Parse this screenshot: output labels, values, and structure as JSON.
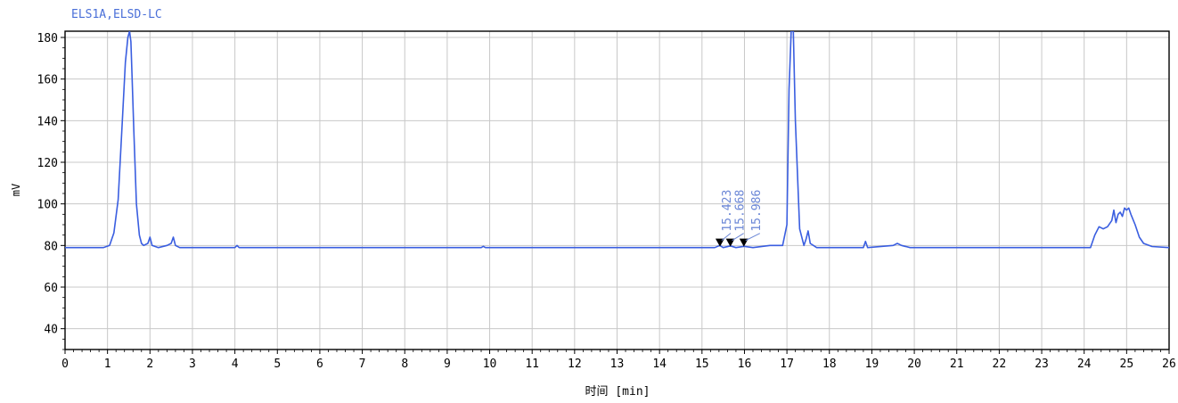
{
  "chart_data": {
    "type": "line",
    "title": "ELS1A,ELSD-LC",
    "xlabel": "时间 [min]",
    "ylabel": "mV",
    "xlim": [
      0,
      26
    ],
    "ylim": [
      30,
      183
    ],
    "x_ticks": [
      0,
      1,
      2,
      3,
      4,
      5,
      6,
      7,
      8,
      9,
      10,
      11,
      12,
      13,
      14,
      15,
      16,
      17,
      18,
      19,
      20,
      21,
      22,
      23,
      24,
      25,
      26
    ],
    "y_ticks": [
      40,
      60,
      80,
      100,
      120,
      140,
      160,
      180
    ],
    "grid": true,
    "colors": {
      "line": "#3a5ee0",
      "title": "#4a6fd8",
      "annotation": "#6a86d6",
      "grid": "#c8c8c8",
      "axis": "#000000"
    },
    "series": [
      {
        "x": [
          0,
          0.5,
          0.9,
          1.05,
          1.15,
          1.25,
          1.35,
          1.42,
          1.48,
          1.52,
          1.55,
          1.58,
          1.62,
          1.68,
          1.75,
          1.8,
          1.85,
          1.95,
          2.0,
          2.05,
          2.2,
          2.4,
          2.5,
          2.55,
          2.6,
          2.7,
          3.0,
          4.0,
          4.05,
          4.1,
          5.0,
          9.8,
          9.85,
          9.9,
          10.5,
          12.5,
          15.3,
          15.42,
          15.5,
          15.67,
          15.8,
          15.99,
          16.2,
          16.6,
          16.9,
          17.0,
          17.05,
          17.1,
          17.15,
          17.2,
          17.3,
          17.4,
          17.45,
          17.5,
          17.55,
          17.7,
          18.0,
          18.8,
          18.85,
          18.9,
          19.5,
          19.6,
          19.7,
          19.9,
          20.5,
          23.5,
          24.15,
          24.25,
          24.35,
          24.45,
          24.55,
          24.65,
          24.7,
          24.75,
          24.8,
          24.85,
          24.9,
          24.95,
          25.0,
          25.05,
          25.1,
          25.2,
          25.3,
          25.4,
          25.6,
          26.0
        ],
        "y": [
          79,
          79,
          79,
          80,
          86,
          102,
          140,
          168,
          180,
          183,
          178,
          160,
          135,
          100,
          85,
          81,
          80,
          81,
          84,
          80,
          79,
          80,
          81,
          84,
          80,
          79,
          79,
          79,
          80,
          79,
          79,
          79,
          79.6,
          79,
          79,
          79,
          79,
          80,
          79,
          79.8,
          79,
          79.6,
          79,
          80,
          80,
          90,
          155,
          183,
          183,
          140,
          88,
          80,
          83,
          87,
          81,
          79,
          79,
          79,
          82,
          79,
          80,
          81,
          80,
          79,
          79,
          79,
          79,
          85,
          89,
          88,
          89,
          92,
          97,
          91,
          95,
          96,
          94,
          98,
          97,
          98,
          95,
          90,
          84,
          81,
          79.5,
          79
        ]
      }
    ],
    "annotations": [
      {
        "label": "15.423",
        "x": 15.423,
        "y": 79
      },
      {
        "label": "15.668",
        "x": 15.668,
        "y": 79
      },
      {
        "label": "15.986",
        "x": 15.986,
        "y": 79
      }
    ]
  }
}
